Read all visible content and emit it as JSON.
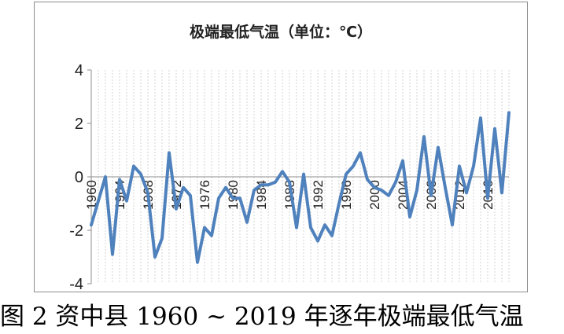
{
  "caption": "图 2   资中县 1960 ~ 2019 年逐年极端最低气温",
  "chart_data": {
    "type": "line",
    "title": "极端最低气温（单位：℃）",
    "xlabel": "",
    "ylabel": "",
    "ylim": [
      -4,
      4
    ],
    "yticks": [
      4,
      2,
      0,
      -2,
      -4
    ],
    "xtick_labels": [
      "1960",
      "1964",
      "1968",
      "1972",
      "1976",
      "1980",
      "1984",
      "1988",
      "1992",
      "1996",
      "2000",
      "2004",
      "2008",
      "2012",
      "2016"
    ],
    "grid": "vertical dashed",
    "legend": "none",
    "line_color": "#4f81bd",
    "x": [
      1960,
      1961,
      1962,
      1963,
      1964,
      1965,
      1966,
      1967,
      1968,
      1969,
      1970,
      1971,
      1972,
      1973,
      1974,
      1975,
      1976,
      1977,
      1978,
      1979,
      1980,
      1981,
      1982,
      1983,
      1984,
      1985,
      1986,
      1987,
      1988,
      1989,
      1990,
      1991,
      1992,
      1993,
      1994,
      1995,
      1996,
      1997,
      1998,
      1999,
      2000,
      2001,
      2002,
      2003,
      2004,
      2005,
      2006,
      2007,
      2008,
      2009,
      2010,
      2011,
      2012,
      2013,
      2014,
      2015,
      2016,
      2017,
      2018,
      2019
    ],
    "values": [
      -1.8,
      -0.9,
      0.0,
      -2.9,
      -0.1,
      -0.9,
      0.4,
      0.1,
      -0.6,
      -3.0,
      -2.3,
      0.9,
      -1.2,
      -0.4,
      -0.7,
      -3.2,
      -1.9,
      -2.2,
      -0.8,
      -0.4,
      -0.8,
      -0.8,
      -1.7,
      -0.5,
      -0.3,
      -0.3,
      -0.2,
      0.2,
      -0.2,
      -1.9,
      0.1,
      -1.9,
      -2.4,
      -1.8,
      -2.2,
      -1.0,
      0.1,
      0.4,
      0.9,
      -0.1,
      -0.4,
      -0.5,
      -0.7,
      -0.2,
      0.6,
      -1.5,
      -0.5,
      1.5,
      -0.7,
      1.1,
      -0.4,
      -1.8,
      0.4,
      -0.6,
      0.4,
      2.2,
      -0.8,
      1.8,
      -0.6,
      2.4
    ]
  }
}
